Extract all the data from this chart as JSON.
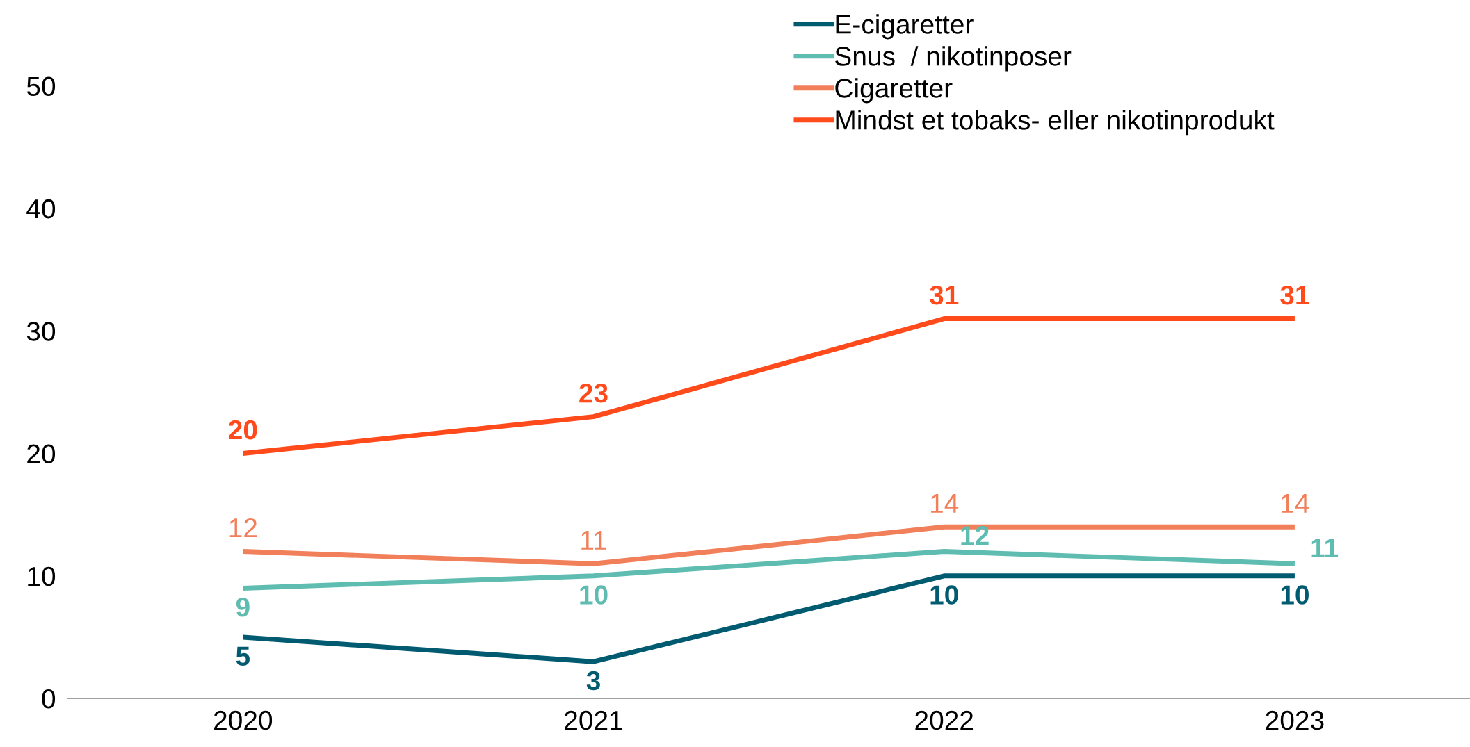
{
  "chart_data": {
    "type": "line",
    "categories": [
      "2020",
      "2021",
      "2022",
      "2023"
    ],
    "series": [
      {
        "name": "E-cigaretter",
        "color": "#005a70",
        "values": [
          5,
          3,
          10,
          10
        ]
      },
      {
        "name": "Snus  / nikotinposer",
        "color": "#5fbcb0",
        "values": [
          9,
          10,
          12,
          11
        ]
      },
      {
        "name": "Cigaretter",
        "color": "#f07f5a",
        "values": [
          12,
          11,
          14,
          14
        ]
      },
      {
        "name": "Mindst et tobaks- eller nikotinprodukt",
        "color": "#ff4a1c",
        "values": [
          20,
          23,
          31,
          31
        ]
      }
    ],
    "ylim": [
      0,
      50
    ],
    "yticks": [
      0,
      10,
      20,
      30,
      40,
      50
    ],
    "grid": false,
    "legend": "top",
    "marker": "none",
    "line_style": "solid",
    "data_labels": true
  }
}
